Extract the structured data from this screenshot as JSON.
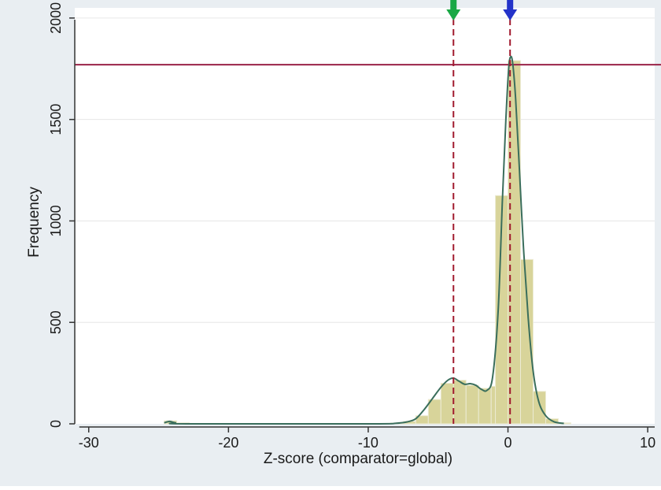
{
  "chart_data": {
    "type": "bar",
    "xlabel": "Z-score (comparator=global)",
    "ylabel": "Frequency",
    "xlim": [
      -31,
      10.5
    ],
    "ylim": [
      0,
      2050
    ],
    "xticks": [
      -30,
      -20,
      -10,
      0,
      10
    ],
    "xtick_labels": [
      "-30",
      "-20",
      "-10",
      "0",
      "10"
    ],
    "yticks": [
      0,
      500,
      1000,
      1500,
      2000
    ],
    "ytick_labels": [
      "0",
      "500",
      "1000",
      "1500",
      "2000"
    ],
    "grid": "horizontal",
    "bin_width": 0.9,
    "bins": [
      {
        "x0": -24.6,
        "value": 15
      },
      {
        "x0": -23.7,
        "value": 5
      },
      {
        "x0": -8.4,
        "value": 4
      },
      {
        "x0": -7.5,
        "value": 12
      },
      {
        "x0": -6.6,
        "value": 40
      },
      {
        "x0": -5.7,
        "value": 120
      },
      {
        "x0": -4.8,
        "value": 200
      },
      {
        "x0": -3.9,
        "value": 215
      },
      {
        "x0": -3.0,
        "value": 190
      },
      {
        "x0": -2.1,
        "value": 175
      },
      {
        "x0": -1.2,
        "value": 185
      },
      {
        "x0": -0.9,
        "value": 1125
      },
      {
        "x0": 0.0,
        "value": 1790
      },
      {
        "x0": 0.9,
        "value": 810
      },
      {
        "x0": 1.8,
        "value": 160
      },
      {
        "x0": 2.7,
        "value": 25
      },
      {
        "x0": 3.6,
        "value": 5
      }
    ],
    "density": {
      "x": [
        -24.6,
        -24.2,
        -23.8,
        -23.0,
        -10.0,
        -8.0,
        -7.2,
        -6.6,
        -6.0,
        -5.4,
        -4.8,
        -4.3,
        -3.9,
        -3.5,
        -3.1,
        -2.7,
        -2.3,
        -1.9,
        -1.5,
        -1.1,
        -0.7,
        -0.4,
        -0.15,
        0.05,
        0.2,
        0.35,
        0.55,
        0.8,
        1.1,
        1.45,
        1.8,
        2.2,
        2.7,
        3.3,
        4.0
      ],
      "y": [
        5,
        12,
        5,
        0,
        0,
        3,
        10,
        25,
        70,
        125,
        180,
        215,
        225,
        210,
        195,
        198,
        190,
        170,
        165,
        230,
        560,
        1100,
        1500,
        1750,
        1810,
        1770,
        1600,
        1280,
        880,
        520,
        260,
        110,
        40,
        10,
        2
      ]
    },
    "reference_line_y": 1770,
    "markers": [
      {
        "x": -3.9,
        "color": "#1aa845",
        "shape": "arrow-down"
      },
      {
        "x": 0.15,
        "color": "#2433c9",
        "shape": "arrow-down"
      }
    ],
    "colors": {
      "bar_fill": "#d8d49a",
      "bar_stroke": "#ecebd4",
      "density": "#3a6e5c",
      "reference_line": "#9a2347",
      "marker_line": "#a11a2e",
      "plot_bg": "#ffffff",
      "outer_bg": "#e9eef2",
      "grid": "#e6e6e6"
    }
  }
}
